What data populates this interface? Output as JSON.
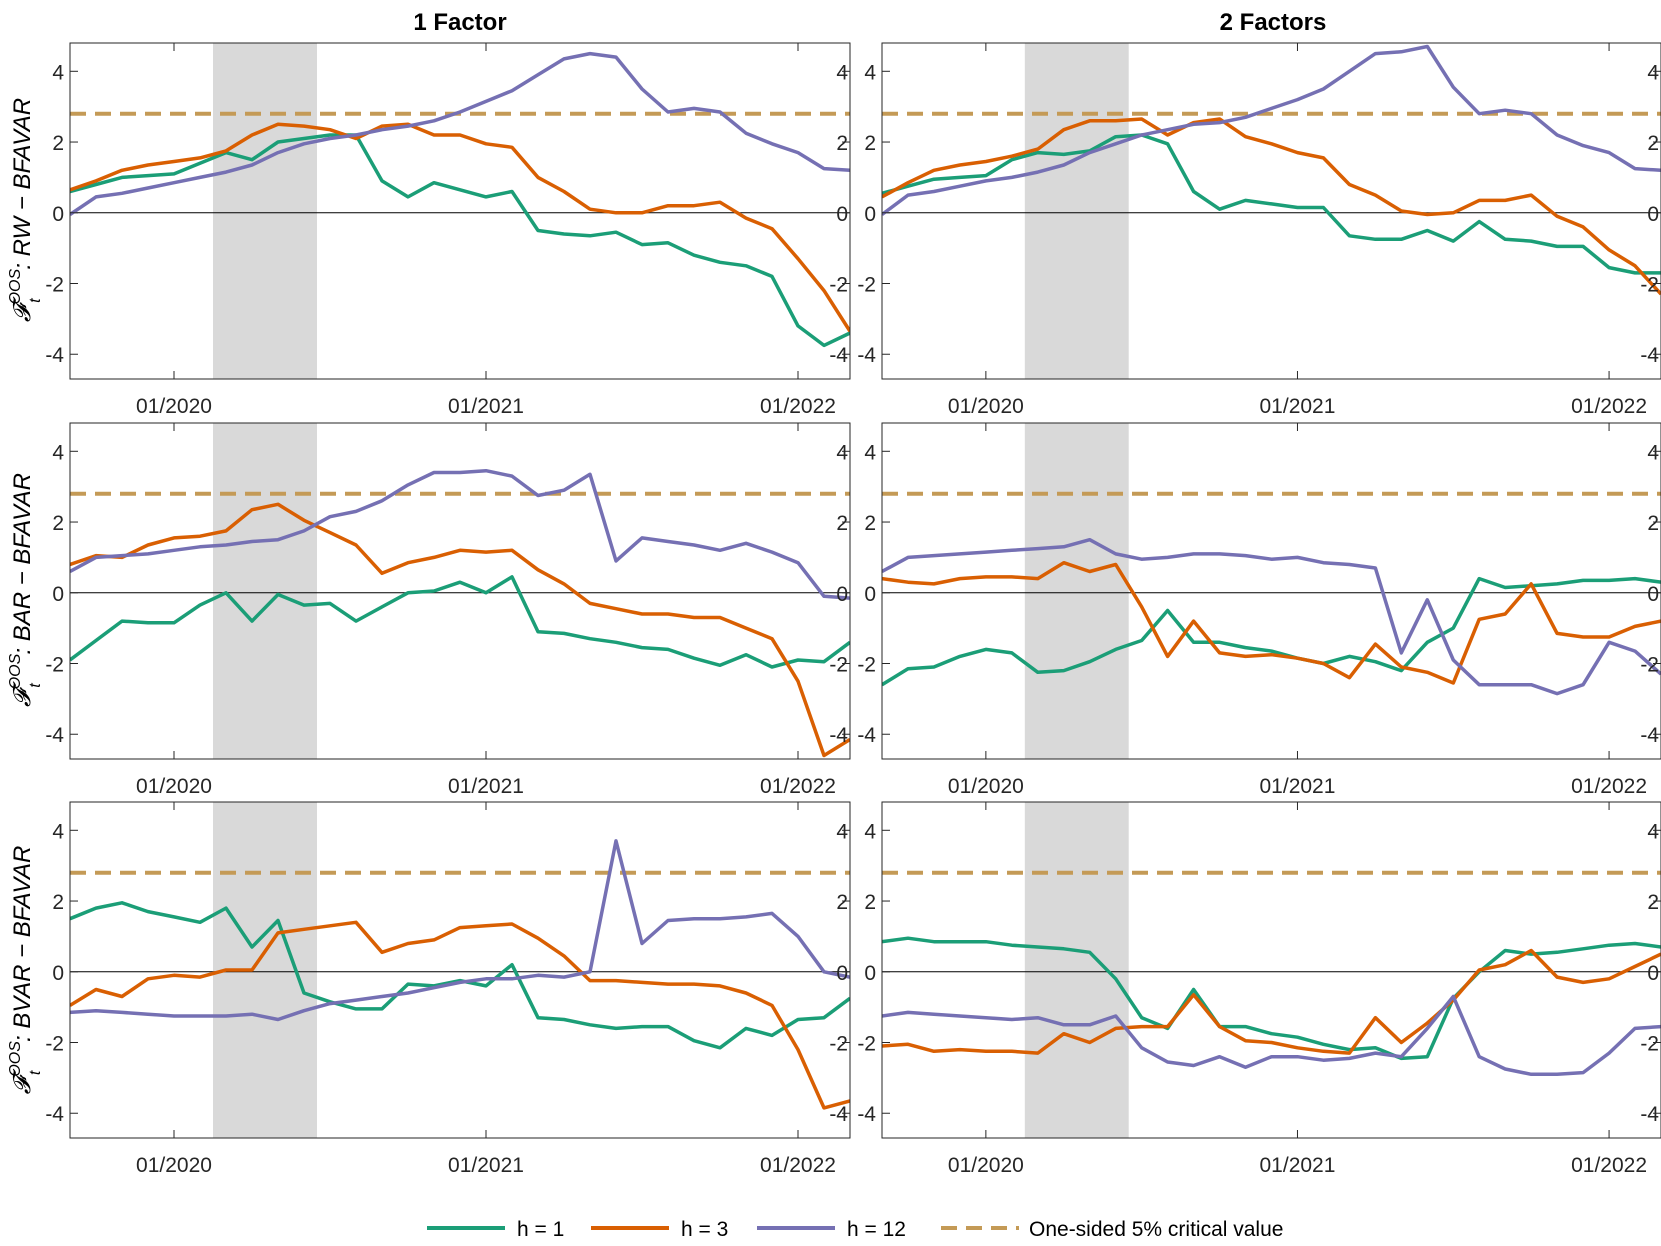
{
  "columns": [
    "1 Factor",
    "2 Factors"
  ],
  "row_labels": [
    "F_t^OOS : RW − BFAVAR",
    "F_t^OOS : BAR − BFAVAR",
    "F_t^OOS : BVAR − BFAVAR"
  ],
  "legend": [
    {
      "label": "h = 1",
      "color": "#1b9e77",
      "dash": false
    },
    {
      "label": "h = 3",
      "color": "#d95f02",
      "dash": false
    },
    {
      "label": "h = 12",
      "color": "#7570b3",
      "dash": false
    },
    {
      "label": "One-sided 5% critical value",
      "color": "#c49a56",
      "dash": true
    }
  ],
  "chart_data": [
    {
      "type": "line",
      "column": "1 Factor",
      "row_label": "F_t^OOS : RW − BFAVAR",
      "x_start": "2019-09",
      "x_end": "2022-03",
      "xticks": [
        "01/2020",
        "01/2021",
        "01/2022"
      ],
      "yticks": [
        -4,
        -2,
        0,
        2,
        4
      ],
      "ylim": [
        -4.7,
        4.8
      ],
      "critical_value": 2.8,
      "shaded_period": [
        "2020-02",
        "2020-06"
      ],
      "series": [
        {
          "name": "h = 1",
          "values": [
            0.6,
            0.8,
            1.0,
            1.05,
            1.1,
            1.4,
            1.7,
            1.5,
            2.0,
            2.1,
            2.2,
            2.2,
            0.9,
            0.45,
            0.85,
            0.65,
            0.45,
            0.6,
            -0.5,
            -0.6,
            -0.65,
            -0.55,
            -0.9,
            -0.85,
            -1.2,
            -1.4,
            -1.5,
            -1.8,
            -3.2,
            -3.75,
            -3.4
          ]
        },
        {
          "name": "h = 3",
          "values": [
            0.65,
            0.9,
            1.2,
            1.35,
            1.45,
            1.55,
            1.75,
            2.2,
            2.5,
            2.45,
            2.35,
            2.1,
            2.45,
            2.5,
            2.2,
            2.2,
            1.95,
            1.85,
            1.0,
            0.6,
            0.1,
            0.0,
            0.0,
            0.2,
            0.2,
            0.3,
            -0.15,
            -0.45,
            -1.3,
            -2.2,
            -3.35
          ]
        },
        {
          "name": "h = 12",
          "values": [
            -0.05,
            0.45,
            0.55,
            0.7,
            0.85,
            1.0,
            1.15,
            1.35,
            1.7,
            1.95,
            2.1,
            2.2,
            2.35,
            2.45,
            2.6,
            2.85,
            3.15,
            3.45,
            3.9,
            4.35,
            4.5,
            4.4,
            3.5,
            2.85,
            2.95,
            2.85,
            2.25,
            1.95,
            1.7,
            1.25,
            1.2
          ]
        }
      ]
    },
    {
      "type": "line",
      "column": "2 Factors",
      "row_label": "F_t^OOS : RW − BFAVAR",
      "x_start": "2019-09",
      "x_end": "2022-03",
      "xticks": [
        "01/2020",
        "01/2021",
        "01/2022"
      ],
      "yticks": [
        -4,
        -2,
        0,
        2,
        4
      ],
      "ylim": [
        -4.7,
        4.8
      ],
      "critical_value": 2.8,
      "shaded_period": [
        "2020-02",
        "2020-06"
      ],
      "series": [
        {
          "name": "h = 1",
          "values": [
            0.55,
            0.75,
            0.95,
            1.0,
            1.05,
            1.5,
            1.7,
            1.65,
            1.75,
            2.15,
            2.2,
            1.95,
            0.6,
            0.1,
            0.35,
            0.25,
            0.15,
            0.15,
            -0.65,
            -0.75,
            -0.75,
            -0.5,
            -0.8,
            -0.25,
            -0.75,
            -0.8,
            -0.95,
            -0.95,
            -1.55,
            -1.7,
            -1.7
          ]
        },
        {
          "name": "h = 3",
          "values": [
            0.45,
            0.85,
            1.2,
            1.35,
            1.45,
            1.6,
            1.8,
            2.35,
            2.6,
            2.6,
            2.65,
            2.2,
            2.55,
            2.65,
            2.15,
            1.95,
            1.7,
            1.55,
            0.8,
            0.5,
            0.05,
            -0.05,
            0.0,
            0.35,
            0.35,
            0.5,
            -0.1,
            -0.4,
            -1.05,
            -1.5,
            -2.3
          ]
        },
        {
          "name": "h = 12",
          "values": [
            -0.05,
            0.5,
            0.6,
            0.75,
            0.9,
            1.0,
            1.15,
            1.35,
            1.7,
            1.95,
            2.2,
            2.35,
            2.5,
            2.55,
            2.7,
            2.95,
            3.2,
            3.5,
            4.0,
            4.5,
            4.55,
            4.7,
            3.55,
            2.8,
            2.9,
            2.8,
            2.2,
            1.9,
            1.7,
            1.25,
            1.2
          ]
        }
      ]
    },
    {
      "type": "line",
      "column": "1 Factor",
      "row_label": "F_t^OOS : BAR − BFAVAR",
      "x_start": "2019-09",
      "x_end": "2022-03",
      "xticks": [
        "01/2020",
        "01/2021",
        "01/2022"
      ],
      "yticks": [
        -4,
        -2,
        0,
        2,
        4
      ],
      "ylim": [
        -4.7,
        4.8
      ],
      "critical_value": 2.8,
      "shaded_period": [
        "2020-02",
        "2020-06"
      ],
      "series": [
        {
          "name": "h = 1",
          "values": [
            -1.9,
            -1.35,
            -0.8,
            -0.85,
            -0.85,
            -0.35,
            0.0,
            -0.8,
            -0.05,
            -0.35,
            -0.3,
            -0.8,
            -0.4,
            0.0,
            0.05,
            0.3,
            0.0,
            0.45,
            -1.1,
            -1.15,
            -1.3,
            -1.4,
            -1.55,
            -1.6,
            -1.85,
            -2.05,
            -1.75,
            -2.1,
            -1.9,
            -1.95,
            -1.4
          ]
        },
        {
          "name": "h = 3",
          "values": [
            0.8,
            1.05,
            1.0,
            1.35,
            1.55,
            1.6,
            1.75,
            2.35,
            2.5,
            2.05,
            1.7,
            1.35,
            0.55,
            0.85,
            1.0,
            1.2,
            1.15,
            1.2,
            0.65,
            0.25,
            -0.3,
            -0.45,
            -0.6,
            -0.6,
            -0.7,
            -0.7,
            -1.0,
            -1.3,
            -2.5,
            -4.6,
            -4.15
          ]
        },
        {
          "name": "h = 12",
          "values": [
            0.6,
            1.0,
            1.05,
            1.1,
            1.2,
            1.3,
            1.35,
            1.45,
            1.5,
            1.75,
            2.15,
            2.3,
            2.6,
            3.05,
            3.4,
            3.4,
            3.45,
            3.3,
            2.75,
            2.9,
            3.35,
            0.9,
            1.55,
            1.45,
            1.35,
            1.2,
            1.4,
            1.15,
            0.85,
            -0.1,
            -0.15
          ]
        }
      ]
    },
    {
      "type": "line",
      "column": "2 Factors",
      "row_label": "F_t^OOS : BAR − BFAVAR",
      "x_start": "2019-09",
      "x_end": "2022-03",
      "xticks": [
        "01/2020",
        "01/2021",
        "01/2022"
      ],
      "yticks": [
        -4,
        -2,
        0,
        2,
        4
      ],
      "ylim": [
        -4.7,
        4.8
      ],
      "critical_value": 2.8,
      "shaded_period": [
        "2020-02",
        "2020-06"
      ],
      "series": [
        {
          "name": "h = 1",
          "values": [
            -2.6,
            -2.15,
            -2.1,
            -1.8,
            -1.6,
            -1.7,
            -2.25,
            -2.2,
            -1.95,
            -1.6,
            -1.35,
            -0.5,
            -1.4,
            -1.4,
            -1.55,
            -1.65,
            -1.85,
            -2.0,
            -1.8,
            -1.95,
            -2.2,
            -1.4,
            -1.0,
            0.4,
            0.15,
            0.2,
            0.25,
            0.35,
            0.35,
            0.4,
            0.3
          ]
        },
        {
          "name": "h = 3",
          "values": [
            0.4,
            0.3,
            0.25,
            0.4,
            0.45,
            0.45,
            0.4,
            0.85,
            0.6,
            0.8,
            -0.4,
            -1.8,
            -0.8,
            -1.7,
            -1.8,
            -1.75,
            -1.85,
            -2.0,
            -2.4,
            -1.45,
            -2.1,
            -2.25,
            -2.55,
            -0.75,
            -0.6,
            0.25,
            -1.15,
            -1.25,
            -1.25,
            -0.95,
            -0.8
          ]
        },
        {
          "name": "h = 12",
          "values": [
            0.6,
            1.0,
            1.05,
            1.1,
            1.15,
            1.2,
            1.25,
            1.3,
            1.5,
            1.1,
            0.95,
            1.0,
            1.1,
            1.1,
            1.05,
            0.95,
            1.0,
            0.85,
            0.8,
            0.7,
            -1.7,
            -0.2,
            -1.9,
            -2.6,
            -2.6,
            -2.6,
            -2.85,
            -2.6,
            -1.4,
            -1.65,
            -2.3
          ]
        }
      ]
    },
    {
      "type": "line",
      "column": "1 Factor",
      "row_label": "F_t^OOS : BVAR − BFAVAR",
      "x_start": "2019-09",
      "x_end": "2022-03",
      "xticks": [
        "01/2020",
        "01/2021",
        "01/2022"
      ],
      "yticks": [
        -4,
        -2,
        0,
        2,
        4
      ],
      "ylim": [
        -4.7,
        4.8
      ],
      "critical_value": 2.8,
      "shaded_period": [
        "2020-02",
        "2020-06"
      ],
      "series": [
        {
          "name": "h = 1",
          "values": [
            1.5,
            1.8,
            1.95,
            1.7,
            1.55,
            1.4,
            1.8,
            0.7,
            1.45,
            -0.6,
            -0.85,
            -1.05,
            -1.05,
            -0.35,
            -0.4,
            -0.25,
            -0.4,
            0.2,
            -1.3,
            -1.35,
            -1.5,
            -1.6,
            -1.55,
            -1.55,
            -1.95,
            -2.15,
            -1.6,
            -1.8,
            -1.35,
            -1.3,
            -0.75
          ]
        },
        {
          "name": "h = 3",
          "values": [
            -0.95,
            -0.5,
            -0.7,
            -0.2,
            -0.1,
            -0.15,
            0.05,
            0.05,
            1.1,
            1.2,
            1.3,
            1.4,
            0.55,
            0.8,
            0.9,
            1.25,
            1.3,
            1.35,
            0.95,
            0.45,
            -0.25,
            -0.25,
            -0.3,
            -0.35,
            -0.35,
            -0.4,
            -0.6,
            -0.95,
            -2.2,
            -3.85,
            -3.65
          ]
        },
        {
          "name": "h = 12",
          "values": [
            -1.15,
            -1.1,
            -1.15,
            -1.2,
            -1.25,
            -1.25,
            -1.25,
            -1.2,
            -1.35,
            -1.1,
            -0.9,
            -0.8,
            -0.7,
            -0.6,
            -0.45,
            -0.3,
            -0.2,
            -0.2,
            -0.1,
            -0.15,
            0.0,
            3.7,
            0.8,
            1.45,
            1.5,
            1.5,
            1.55,
            1.65,
            1.0,
            0.0,
            -0.15
          ]
        }
      ]
    },
    {
      "type": "line",
      "column": "2 Factors",
      "row_label": "F_t^OOS : BVAR − BFAVAR",
      "x_start": "2019-09",
      "x_end": "2022-03",
      "xticks": [
        "01/2020",
        "01/2021",
        "01/2022"
      ],
      "yticks": [
        -4,
        -2,
        0,
        2,
        4
      ],
      "ylim": [
        -4.7,
        4.8
      ],
      "critical_value": 2.8,
      "shaded_period": [
        "2020-02",
        "2020-06"
      ],
      "series": [
        {
          "name": "h = 1",
          "values": [
            0.85,
            0.95,
            0.85,
            0.85,
            0.85,
            0.75,
            0.7,
            0.65,
            0.55,
            -0.2,
            -1.3,
            -1.6,
            -0.5,
            -1.55,
            -1.55,
            -1.75,
            -1.85,
            -2.05,
            -2.2,
            -2.15,
            -2.45,
            -2.4,
            -0.75,
            0.0,
            0.6,
            0.5,
            0.55,
            0.65,
            0.75,
            0.8,
            0.7
          ]
        },
        {
          "name": "h = 3",
          "values": [
            -2.1,
            -2.05,
            -2.25,
            -2.2,
            -2.25,
            -2.25,
            -2.3,
            -1.75,
            -2.0,
            -1.6,
            -1.55,
            -1.55,
            -0.65,
            -1.55,
            -1.95,
            -2.0,
            -2.15,
            -2.25,
            -2.3,
            -1.3,
            -2.0,
            -1.45,
            -0.8,
            0.05,
            0.2,
            0.6,
            -0.15,
            -0.3,
            -0.2,
            0.15,
            0.5
          ]
        },
        {
          "name": "h = 12",
          "values": [
            -1.25,
            -1.15,
            -1.2,
            -1.25,
            -1.3,
            -1.35,
            -1.3,
            -1.5,
            -1.5,
            -1.25,
            -2.15,
            -2.55,
            -2.65,
            -2.4,
            -2.7,
            -2.4,
            -2.4,
            -2.5,
            -2.45,
            -2.3,
            -2.4,
            -1.6,
            -0.7,
            -2.4,
            -2.75,
            -2.9,
            -2.9,
            -2.85,
            -2.3,
            -1.6,
            -1.55
          ]
        }
      ]
    }
  ]
}
